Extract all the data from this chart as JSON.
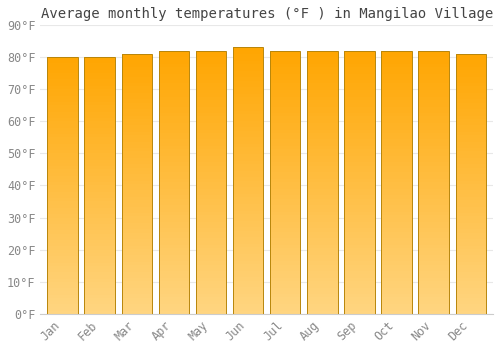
{
  "title": "Average monthly temperatures (°F ) in Mangilao Village",
  "months": [
    "Jan",
    "Feb",
    "Mar",
    "Apr",
    "May",
    "Jun",
    "Jul",
    "Aug",
    "Sep",
    "Oct",
    "Nov",
    "Dec"
  ],
  "values": [
    80,
    80,
    81,
    82,
    82,
    83,
    82,
    82,
    82,
    82,
    82,
    81
  ],
  "ylim": [
    0,
    90
  ],
  "yticks": [
    0,
    10,
    20,
    30,
    40,
    50,
    60,
    70,
    80,
    90
  ],
  "bar_color_top": "#FFA500",
  "bar_color_bottom": "#FFD580",
  "bar_edge_color": "#B8860B",
  "background_color": "#ffffff",
  "grid_color": "#e8e8e8",
  "tick_label_color": "#888888",
  "title_color": "#444444",
  "title_fontsize": 10,
  "tick_fontsize": 8.5,
  "bar_width": 0.82
}
